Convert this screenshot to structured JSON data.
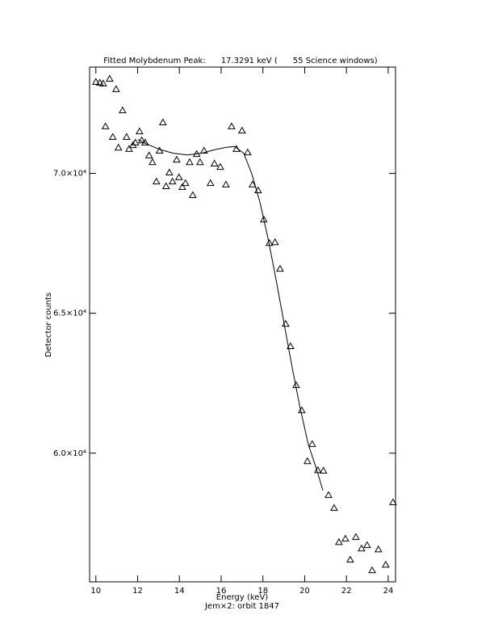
{
  "chart_data": {
    "type": "scatter",
    "title": "Fitted Molybdenum Peak:      17.3291 keV (      55 Science windows)",
    "x_label": "Energy (keV)",
    "subtitle": "Jem×2: orbit 1847",
    "y_label": "Detector counts",
    "xlim": [
      9.7,
      24.35
    ],
    "xticks": [
      10,
      12,
      14,
      16,
      18,
      20,
      22,
      24
    ],
    "ylim": [
      55400,
      73800
    ],
    "yticks": [
      {
        "value": 60000,
        "label": "6.0×10⁴"
      },
      {
        "value": 65000,
        "label": "6.5×10⁴"
      },
      {
        "value": 70000,
        "label": "7.0×10⁴"
      }
    ],
    "grid": false,
    "series": [
      {
        "type": "scatter",
        "marker": "triangle",
        "color": "#000000",
        "x": [
          10.0,
          10.19,
          10.35,
          10.66,
          10.97,
          10.46,
          11.28,
          10.81,
          11.08,
          11.47,
          11.59,
          11.78,
          11.89,
          12.09,
          12.2,
          12.36,
          12.55,
          12.71,
          12.9,
          13.05,
          13.21,
          13.36,
          13.52,
          13.67,
          13.87,
          13.98,
          14.14,
          14.29,
          14.49,
          14.64,
          14.83,
          14.99,
          15.18,
          15.49,
          15.68,
          15.96,
          16.23,
          16.5,
          16.73,
          17.0,
          17.27,
          17.5,
          17.77,
          18.04,
          18.31,
          18.58,
          18.82,
          19.09,
          19.32,
          19.59,
          19.86,
          20.13,
          20.36,
          20.63,
          20.9,
          21.14,
          21.41,
          21.64,
          21.95,
          22.18,
          22.45,
          22.72,
          22.99,
          23.23,
          23.53,
          23.88,
          24.23
        ],
        "values": [
          73270,
          73240,
          73210,
          73380,
          73010,
          71680,
          72250,
          71300,
          70920,
          71300,
          70870,
          71010,
          71100,
          71500,
          71180,
          71100,
          70640,
          70400,
          69710,
          70810,
          71820,
          69540,
          70030,
          69710,
          70490,
          69860,
          69510,
          69650,
          70400,
          69220,
          70690,
          70400,
          70810,
          69650,
          70350,
          70230,
          69600,
          71680,
          70870,
          71530,
          70750,
          69600,
          69390,
          68350,
          67510,
          67540,
          66590,
          64620,
          63820,
          62430,
          61530,
          59710,
          60320,
          59390,
          59370,
          58500,
          58040,
          56820,
          56940,
          56190,
          57000,
          56590,
          56710,
          55810,
          56560,
          56010,
          58240
        ]
      },
      {
        "type": "line",
        "color": "#000000",
        "x": [
          12.01,
          12.55,
          13.13,
          13.71,
          14.37,
          15.07,
          15.65,
          16.23,
          16.65,
          17.08,
          17.46,
          17.85,
          18.24,
          18.62,
          19.01,
          19.4,
          19.78,
          20.17,
          20.56,
          20.87
        ],
        "values": [
          71210,
          71010,
          70840,
          70720,
          70660,
          70720,
          70840,
          70930,
          70960,
          70720,
          70000,
          68990,
          67690,
          66240,
          64650,
          63060,
          61620,
          60320,
          59450,
          58670
        ]
      }
    ]
  }
}
